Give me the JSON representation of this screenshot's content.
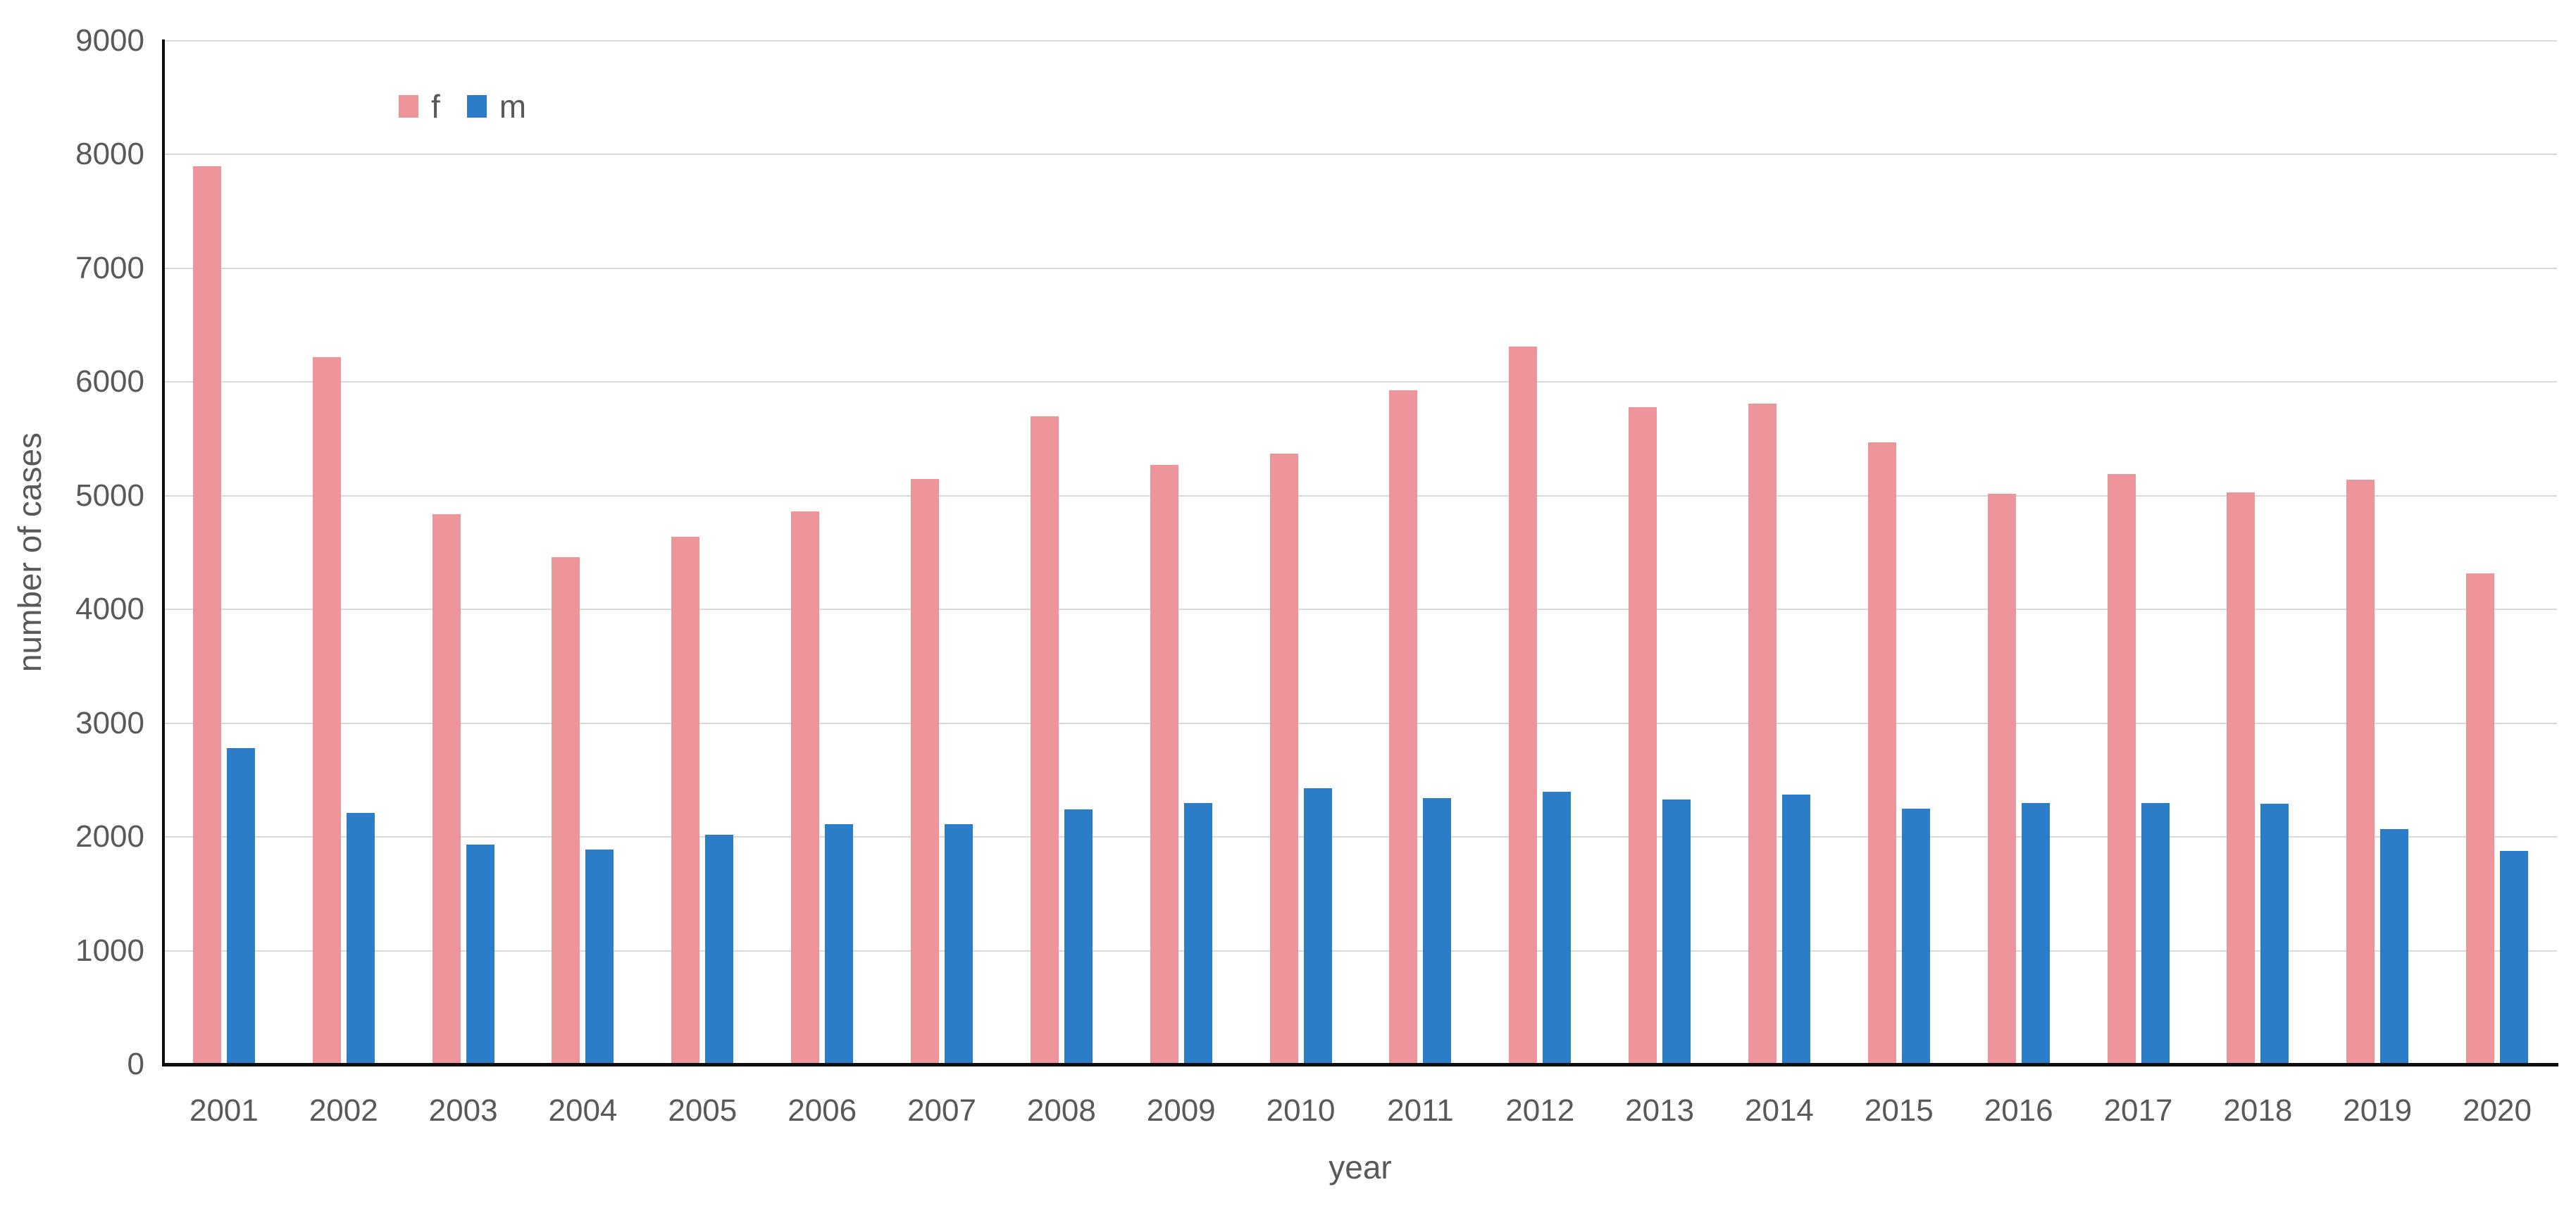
{
  "chart_data": {
    "type": "bar",
    "title": "",
    "xlabel": "year",
    "ylabel": "number of cases",
    "ylim": [
      0,
      9000
    ],
    "ytick_step": 1000,
    "ytick_labels": [
      "0",
      "1000",
      "2000",
      "3000",
      "4000",
      "5000",
      "6000",
      "7000",
      "8000",
      "9000"
    ],
    "grid": true,
    "legend_position": "top-inside-left",
    "categories": [
      "2001",
      "2002",
      "2003",
      "2004",
      "2005",
      "2006",
      "2007",
      "2008",
      "2009",
      "2010",
      "2011",
      "2012",
      "2013",
      "2014",
      "2015",
      "2016",
      "2017",
      "2018",
      "2019",
      "2020"
    ],
    "series": [
      {
        "name": "f",
        "color": "#ee949b",
        "values": [
          7900,
          6220,
          4840,
          4460,
          4640,
          4860,
          5150,
          5700,
          5270,
          5370,
          5930,
          6310,
          5780,
          5810,
          5470,
          5020,
          5190,
          5030,
          5140,
          4320
        ]
      },
      {
        "name": "m",
        "color": "#2b7dc8",
        "values": [
          2780,
          2210,
          1930,
          1890,
          2020,
          2110,
          2110,
          2240,
          2300,
          2430,
          2340,
          2400,
          2330,
          2370,
          2250,
          2300,
          2300,
          2290,
          2070,
          1880
        ]
      }
    ],
    "colors": {
      "gridline": "#d9d9d9",
      "axis_line": "#0d0d0d",
      "label_text": "#595959"
    }
  },
  "legend": {
    "f_label": "f",
    "m_label": "m"
  },
  "axes": {
    "x_title": "year",
    "y_title": "number of cases"
  }
}
